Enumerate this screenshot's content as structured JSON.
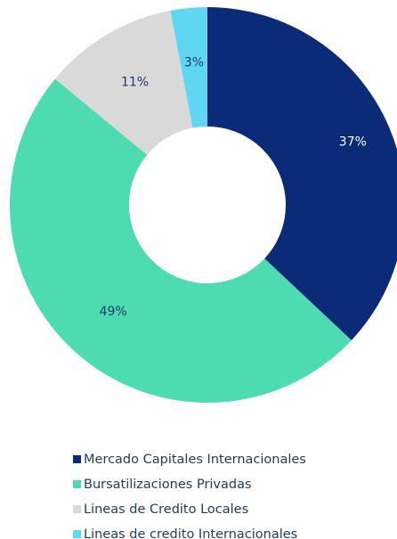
{
  "chart_data": {
    "type": "donut",
    "categories": [
      "Mercado Capitales Internacionales",
      "Bursatilizaciones Privadas",
      "Lineas de Credito Locales",
      "Lineas de credito Internacionales"
    ],
    "values": [
      37,
      49,
      11,
      3
    ],
    "value_labels": [
      "37%",
      "49%",
      "11%",
      "3%"
    ],
    "colors": [
      "#0b2a78",
      "#4ddbb2",
      "#d9d9d9",
      "#5fd6f2"
    ],
    "legend": "bottom"
  }
}
